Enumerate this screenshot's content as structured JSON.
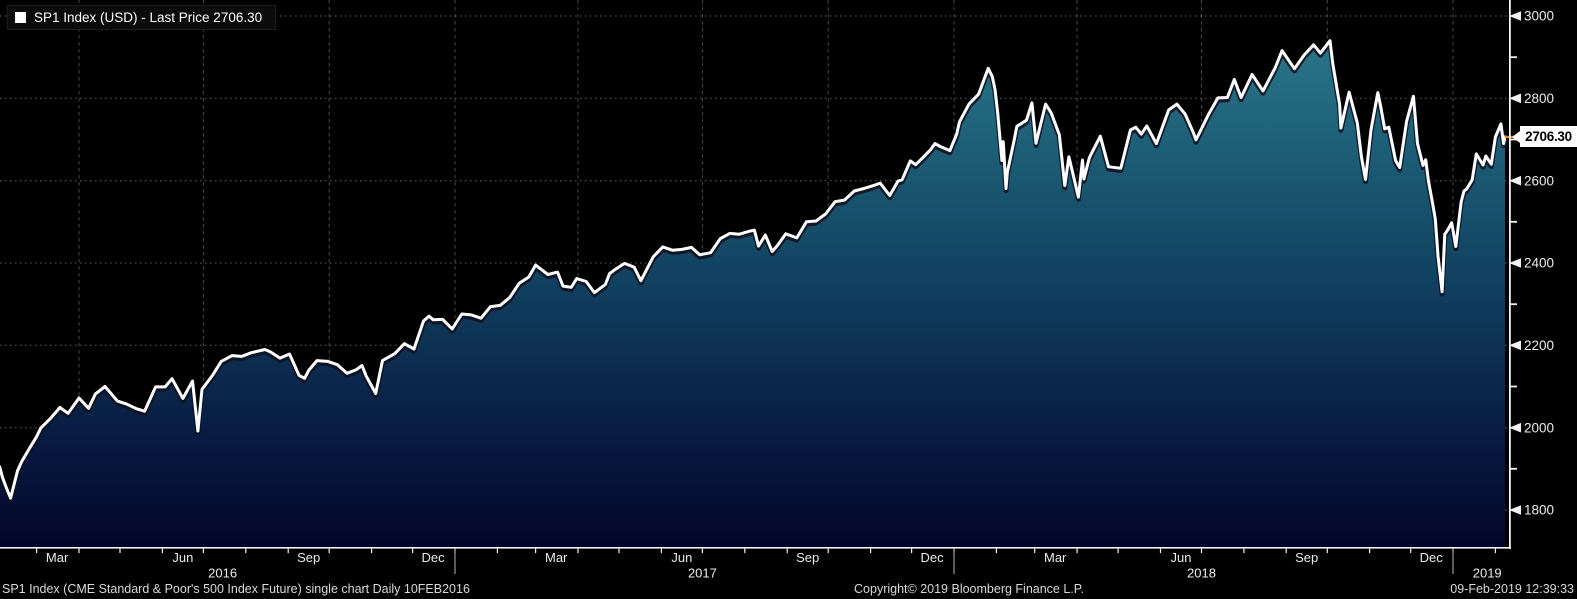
{
  "legend": {
    "label": "SP1 Index (USD) - Last Price 2706.30"
  },
  "price": {
    "value": "2706.30"
  },
  "footer": {
    "left": "SP1 Index (CME Standard & Poor's 500 Index Future) single chart  Daily 10FEB2016",
    "copyright": "Copyright© 2019 Bloomberg Finance L.P.",
    "timestamp": "09-Feb-2019 12:39:33"
  },
  "colors": {
    "line": "#ffffff",
    "line_shadow": "#0a1222",
    "accent_orange": "#e8872a",
    "grid": "#7d8494",
    "axis": "#f2f2f2",
    "tick_text": "#ebebeb",
    "fill_top": "#2f7e90",
    "fill_mid1": "#1c5d75",
    "fill_mid2": "#10405f",
    "fill_mid3": "#091f45",
    "fill_bottom": "#03052b",
    "background": "#000000"
  },
  "chart_data": {
    "type": "area",
    "title": "SP1 Index (USD) - Last Price 2706.30",
    "xlabel": "",
    "ylabel": "",
    "last_price": 2706.3,
    "x_domain": [
      "2016-02-03",
      "2019-02-20"
    ],
    "ylim": [
      1710,
      3040
    ],
    "grid": true,
    "legend_position": "top-left",
    "y_axis": {
      "major_ticks": [
        3000,
        2800,
        2600,
        2400,
        2200,
        2000,
        1800
      ],
      "minor_ticks": [
        2900,
        2700,
        2500,
        2300,
        2100,
        1900
      ]
    },
    "x_axis": {
      "month_labels": [
        {
          "text": "Mar",
          "date": "2016-03-16"
        },
        {
          "text": "Jun",
          "date": "2016-06-16"
        },
        {
          "text": "Sep",
          "date": "2016-09-16"
        },
        {
          "text": "Dec",
          "date": "2016-12-16"
        },
        {
          "text": "Mar",
          "date": "2017-03-16"
        },
        {
          "text": "Jun",
          "date": "2017-06-16"
        },
        {
          "text": "Sep",
          "date": "2017-09-16"
        },
        {
          "text": "Dec",
          "date": "2017-12-16"
        },
        {
          "text": "Mar",
          "date": "2018-03-16"
        },
        {
          "text": "Jun",
          "date": "2018-06-16"
        },
        {
          "text": "Sep",
          "date": "2018-09-16"
        },
        {
          "text": "Dec",
          "date": "2018-12-16"
        }
      ],
      "year_labels": [
        {
          "text": "2016",
          "date": "2016-07-15"
        },
        {
          "text": "2017",
          "date": "2017-07-01"
        },
        {
          "text": "2018",
          "date": "2018-07-01"
        },
        {
          "text": "2019",
          "date": "2019-01-26"
        }
      ],
      "quarter_gridline_dates": [
        "2016-04-01",
        "2016-07-01",
        "2016-10-01",
        "2017-01-01",
        "2017-04-01",
        "2017-07-01",
        "2017-10-01",
        "2018-01-01",
        "2018-04-01",
        "2018-07-01",
        "2018-10-01",
        "2019-01-01"
      ],
      "year_separator_dates": [
        "2017-01-01",
        "2018-01-01",
        "2019-01-01"
      ],
      "month_ticks_from": "2016-03-01",
      "month_ticks_to": "2019-02-01"
    },
    "series": [
      {
        "name": "SP1 Index (USD) - Last Price",
        "points": [
          [
            "2016-02-03",
            1905
          ],
          [
            "2016-02-05",
            1880
          ],
          [
            "2016-02-08",
            1853
          ],
          [
            "2016-02-11",
            1829
          ],
          [
            "2016-02-16",
            1895
          ],
          [
            "2016-02-19",
            1917
          ],
          [
            "2016-02-25",
            1951
          ],
          [
            "2016-03-01",
            1978
          ],
          [
            "2016-03-04",
            1999
          ],
          [
            "2016-03-11",
            2022
          ],
          [
            "2016-03-18",
            2049
          ],
          [
            "2016-03-24",
            2035
          ],
          [
            "2016-04-01",
            2072
          ],
          [
            "2016-04-08",
            2047
          ],
          [
            "2016-04-13",
            2082
          ],
          [
            "2016-04-20",
            2100
          ],
          [
            "2016-04-29",
            2065
          ],
          [
            "2016-05-06",
            2057
          ],
          [
            "2016-05-13",
            2046
          ],
          [
            "2016-05-19",
            2040
          ],
          [
            "2016-05-27",
            2099
          ],
          [
            "2016-06-03",
            2099
          ],
          [
            "2016-06-08",
            2119
          ],
          [
            "2016-06-16",
            2071
          ],
          [
            "2016-06-23",
            2113
          ],
          [
            "2016-06-27",
            1992
          ],
          [
            "2016-06-30",
            2093
          ],
          [
            "2016-07-08",
            2129
          ],
          [
            "2016-07-14",
            2161
          ],
          [
            "2016-07-22",
            2175
          ],
          [
            "2016-07-29",
            2173
          ],
          [
            "2016-08-05",
            2182
          ],
          [
            "2016-08-15",
            2190
          ],
          [
            "2016-08-19",
            2184
          ],
          [
            "2016-08-26",
            2169
          ],
          [
            "2016-09-02",
            2179
          ],
          [
            "2016-09-09",
            2127
          ],
          [
            "2016-09-13",
            2120
          ],
          [
            "2016-09-16",
            2139
          ],
          [
            "2016-09-22",
            2163
          ],
          [
            "2016-09-30",
            2161
          ],
          [
            "2016-10-07",
            2153
          ],
          [
            "2016-10-14",
            2132
          ],
          [
            "2016-10-21",
            2141
          ],
          [
            "2016-10-25",
            2151
          ],
          [
            "2016-10-28",
            2126
          ],
          [
            "2016-11-04",
            2083
          ],
          [
            "2016-11-09",
            2163
          ],
          [
            "2016-11-18",
            2180
          ],
          [
            "2016-11-25",
            2204
          ],
          [
            "2016-12-02",
            2191
          ],
          [
            "2016-12-09",
            2259
          ],
          [
            "2016-12-13",
            2271
          ],
          [
            "2016-12-16",
            2262
          ],
          [
            "2016-12-23",
            2263
          ],
          [
            "2016-12-30",
            2240
          ],
          [
            "2017-01-06",
            2276
          ],
          [
            "2017-01-13",
            2274
          ],
          [
            "2017-01-20",
            2266
          ],
          [
            "2017-01-27",
            2294
          ],
          [
            "2017-02-03",
            2297
          ],
          [
            "2017-02-10",
            2316
          ],
          [
            "2017-02-17",
            2351
          ],
          [
            "2017-02-24",
            2366
          ],
          [
            "2017-03-01",
            2395
          ],
          [
            "2017-03-10",
            2372
          ],
          [
            "2017-03-17",
            2378
          ],
          [
            "2017-03-21",
            2344
          ],
          [
            "2017-03-27",
            2341
          ],
          [
            "2017-03-31",
            2362
          ],
          [
            "2017-04-07",
            2355
          ],
          [
            "2017-04-13",
            2328
          ],
          [
            "2017-04-21",
            2348
          ],
          [
            "2017-04-24",
            2374
          ],
          [
            "2017-04-28",
            2384
          ],
          [
            "2017-05-05",
            2399
          ],
          [
            "2017-05-12",
            2390
          ],
          [
            "2017-05-17",
            2357
          ],
          [
            "2017-05-26",
            2415
          ],
          [
            "2017-06-02",
            2439
          ],
          [
            "2017-06-09",
            2431
          ],
          [
            "2017-06-16",
            2433
          ],
          [
            "2017-06-23",
            2438
          ],
          [
            "2017-06-29",
            2420
          ],
          [
            "2017-07-07",
            2425
          ],
          [
            "2017-07-14",
            2459
          ],
          [
            "2017-07-21",
            2472
          ],
          [
            "2017-07-28",
            2470
          ],
          [
            "2017-08-04",
            2477
          ],
          [
            "2017-08-08",
            2480
          ],
          [
            "2017-08-11",
            2441
          ],
          [
            "2017-08-16",
            2468
          ],
          [
            "2017-08-21",
            2428
          ],
          [
            "2017-08-25",
            2443
          ],
          [
            "2017-08-31",
            2471
          ],
          [
            "2017-09-08",
            2461
          ],
          [
            "2017-09-15",
            2500
          ],
          [
            "2017-09-22",
            2502
          ],
          [
            "2017-09-29",
            2519
          ],
          [
            "2017-10-06",
            2549
          ],
          [
            "2017-10-13",
            2553
          ],
          [
            "2017-10-20",
            2575
          ],
          [
            "2017-10-27",
            2581
          ],
          [
            "2017-11-03",
            2588
          ],
          [
            "2017-11-08",
            2594
          ],
          [
            "2017-11-15",
            2564
          ],
          [
            "2017-11-21",
            2599
          ],
          [
            "2017-11-24",
            2602
          ],
          [
            "2017-11-30",
            2648
          ],
          [
            "2017-12-04",
            2639
          ],
          [
            "2017-12-08",
            2652
          ],
          [
            "2017-12-15",
            2676
          ],
          [
            "2017-12-18",
            2690
          ],
          [
            "2017-12-22",
            2683
          ],
          [
            "2017-12-29",
            2673
          ],
          [
            "2018-01-03",
            2713
          ],
          [
            "2018-01-05",
            2743
          ],
          [
            "2018-01-12",
            2786
          ],
          [
            "2018-01-19",
            2810
          ],
          [
            "2018-01-26",
            2873
          ],
          [
            "2018-01-29",
            2853
          ],
          [
            "2018-01-31",
            2822
          ],
          [
            "2018-02-02",
            2762
          ],
          [
            "2018-02-05",
            2649
          ],
          [
            "2018-02-06",
            2695
          ],
          [
            "2018-02-08",
            2581
          ],
          [
            "2018-02-09",
            2620
          ],
          [
            "2018-02-14",
            2699
          ],
          [
            "2018-02-16",
            2732
          ],
          [
            "2018-02-23",
            2747
          ],
          [
            "2018-02-27",
            2789
          ],
          [
            "2018-03-02",
            2691
          ],
          [
            "2018-03-09",
            2786
          ],
          [
            "2018-03-13",
            2765
          ],
          [
            "2018-03-19",
            2712
          ],
          [
            "2018-03-23",
            2588
          ],
          [
            "2018-03-26",
            2658
          ],
          [
            "2018-04-02",
            2560
          ],
          [
            "2018-04-05",
            2650
          ],
          [
            "2018-04-06",
            2604
          ],
          [
            "2018-04-10",
            2656
          ],
          [
            "2018-04-18",
            2708
          ],
          [
            "2018-04-24",
            2634
          ],
          [
            "2018-05-03",
            2630
          ],
          [
            "2018-05-10",
            2723
          ],
          [
            "2018-05-14",
            2730
          ],
          [
            "2018-05-18",
            2713
          ],
          [
            "2018-05-22",
            2733
          ],
          [
            "2018-05-29",
            2690
          ],
          [
            "2018-06-07",
            2772
          ],
          [
            "2018-06-13",
            2786
          ],
          [
            "2018-06-19",
            2762
          ],
          [
            "2018-06-25",
            2717
          ],
          [
            "2018-06-27",
            2699
          ],
          [
            "2018-07-06",
            2760
          ],
          [
            "2018-07-13",
            2801
          ],
          [
            "2018-07-20",
            2802
          ],
          [
            "2018-07-25",
            2846
          ],
          [
            "2018-07-30",
            2802
          ],
          [
            "2018-08-07",
            2858
          ],
          [
            "2018-08-15",
            2818
          ],
          [
            "2018-08-24",
            2875
          ],
          [
            "2018-08-29",
            2916
          ],
          [
            "2018-09-07",
            2872
          ],
          [
            "2018-09-14",
            2905
          ],
          [
            "2018-09-21",
            2930
          ],
          [
            "2018-09-26",
            2910
          ],
          [
            "2018-10-03",
            2940
          ],
          [
            "2018-10-05",
            2885
          ],
          [
            "2018-10-10",
            2785
          ],
          [
            "2018-10-11",
            2728
          ],
          [
            "2018-10-17",
            2815
          ],
          [
            "2018-10-23",
            2740
          ],
          [
            "2018-10-26",
            2658
          ],
          [
            "2018-10-29",
            2603
          ],
          [
            "2018-11-02",
            2723
          ],
          [
            "2018-11-07",
            2814
          ],
          [
            "2018-11-09",
            2781
          ],
          [
            "2018-11-12",
            2726
          ],
          [
            "2018-11-15",
            2730
          ],
          [
            "2018-11-20",
            2649
          ],
          [
            "2018-11-23",
            2632
          ],
          [
            "2018-11-28",
            2744
          ],
          [
            "2018-12-03",
            2805
          ],
          [
            "2018-12-06",
            2690
          ],
          [
            "2018-12-10",
            2637
          ],
          [
            "2018-12-12",
            2651
          ],
          [
            "2018-12-14",
            2600
          ],
          [
            "2018-12-17",
            2546
          ],
          [
            "2018-12-19",
            2507
          ],
          [
            "2018-12-21",
            2417
          ],
          [
            "2018-12-24",
            2330
          ],
          [
            "2018-12-26",
            2470
          ],
          [
            "2018-12-28",
            2480
          ],
          [
            "2018-12-31",
            2498
          ],
          [
            "2019-01-03",
            2440
          ],
          [
            "2019-01-07",
            2549
          ],
          [
            "2019-01-09",
            2575
          ],
          [
            "2019-01-11",
            2580
          ],
          [
            "2019-01-15",
            2602
          ],
          [
            "2019-01-18",
            2665
          ],
          [
            "2019-01-23",
            2638
          ],
          [
            "2019-01-25",
            2660
          ],
          [
            "2019-01-29",
            2640
          ],
          [
            "2019-02-01",
            2706
          ],
          [
            "2019-02-05",
            2738
          ],
          [
            "2019-02-07",
            2690
          ],
          [
            "2019-02-08",
            2706.3
          ]
        ]
      }
    ]
  }
}
